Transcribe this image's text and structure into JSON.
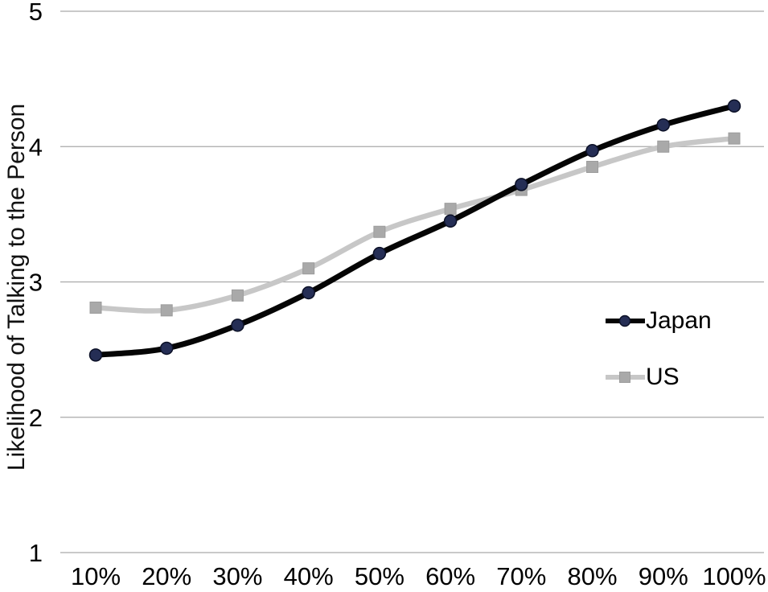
{
  "chart_data": {
    "type": "line",
    "title": "",
    "xlabel": "",
    "ylabel": "Likelihood of Talking to the Person",
    "categories": [
      "10%",
      "20%",
      "30%",
      "40%",
      "50%",
      "60%",
      "70%",
      "80%",
      "90%",
      "100%"
    ],
    "series": [
      {
        "name": "Japan",
        "marker": "circle",
        "line_color": "#050505",
        "marker_fill": "#252e55",
        "marker_stroke": "#0b1026",
        "values": [
          2.46,
          2.51,
          2.68,
          2.92,
          3.21,
          3.45,
          3.72,
          3.97,
          4.16,
          4.3
        ]
      },
      {
        "name": "US",
        "marker": "square",
        "line_color": "#c7c7c7",
        "marker_fill": "#a9a9a9",
        "marker_stroke": "#9c9c9c",
        "values": [
          2.81,
          2.79,
          2.9,
          3.1,
          3.37,
          3.54,
          3.68,
          3.85,
          4.0,
          4.06
        ]
      }
    ],
    "ylim": [
      1,
      5
    ],
    "yticks": [
      1,
      2,
      3,
      4,
      5
    ],
    "grid": "horizontal",
    "gridline_color": "#a9a9a9",
    "legend_position": "inside-right",
    "tick_color": "#000000",
    "background": "#ffffff"
  }
}
